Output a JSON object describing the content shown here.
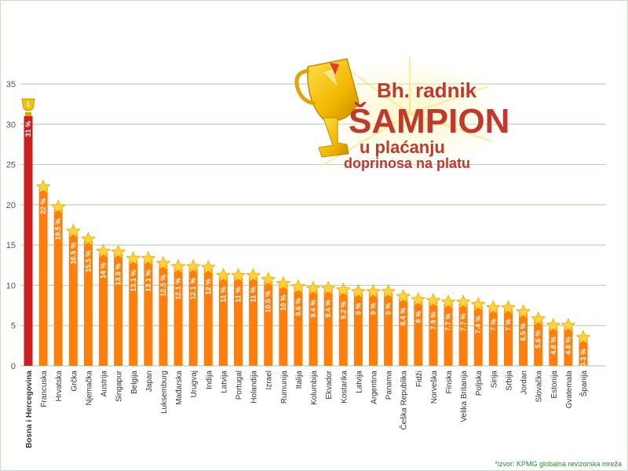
{
  "headline": {
    "line1": "Bh. radnik",
    "line2": "ŠAMPION",
    "line3": "u plaćanju",
    "line4": "doprinosa na platu"
  },
  "source_note": "*izvor: KPMG globalna revizorska mreža",
  "colors": {
    "highlight_bar": "#cc1f1f",
    "bar": "#ff7f0e",
    "star": "#ffd23f",
    "grid": "#b9d8b0",
    "title": "#c0392b",
    "source": "#2e8b2e"
  },
  "chart_data": {
    "type": "bar",
    "title": "",
    "xlabel": "",
    "ylabel": "",
    "ylim": [
      0,
      35
    ],
    "yticks": [
      0,
      5,
      10,
      15,
      20,
      25,
      30,
      35
    ],
    "grid": true,
    "highlight_marker": "1",
    "categories": [
      "Bosna i Hercegovina",
      "Francuska",
      "Hrvatska",
      "Grčka",
      "Njemačka",
      "Austrija",
      "Singapur",
      "Belgija",
      "Japan",
      "Luksemburg",
      "Mađarska",
      "Urugvaj",
      "Indija",
      "Latvija",
      "Portugal",
      "Holandija",
      "Izrael",
      "Rumunija",
      "Italija",
      "Kolumbija",
      "Ekvador",
      "Kostarika",
      "Latvija",
      "Argentina",
      "Panama",
      "Češka Republika",
      "Fidži",
      "Norveška",
      "Finska",
      "Velika Britanija",
      "Poljska",
      "Sirija",
      "Srbija",
      "Jordan",
      "Slovačka",
      "Estonija",
      "Gvatemala",
      "Španija"
    ],
    "values": [
      31,
      22,
      19.5,
      16.5,
      15.5,
      14,
      13.9,
      13.1,
      13.1,
      12.5,
      12.1,
      12.1,
      12,
      11,
      11,
      11,
      10.5,
      10,
      9.6,
      9.4,
      9.4,
      9.2,
      9,
      9,
      9,
      8.4,
      8,
      7.9,
      7.7,
      7.7,
      7.4,
      7,
      7,
      6.5,
      5.6,
      4.8,
      4.8,
      3.3
    ],
    "value_labels": [
      "31 %",
      "22 %",
      "19.5 %",
      "16.5 %",
      "15.5 %",
      "14 %",
      "13.9 %",
      "13.1 %",
      "13.1 %",
      "12.5 %",
      "12.1 %",
      "12.1 %",
      "12 %",
      "11 %",
      "11 %",
      "11 %",
      "10.5 %",
      "10 %",
      "9.6 %",
      "9.4 %",
      "9.4 %",
      "9.2 %",
      "9 %",
      "9 %",
      "9 %",
      "8.4 %",
      "8 %",
      "7.9 %",
      "7.7 %",
      "7.7 %",
      "7.4 %",
      "7 %",
      "7 %",
      "6.5 %",
      "5.6 %",
      "4.8 %",
      "4.8 %",
      "3.3 %"
    ]
  }
}
